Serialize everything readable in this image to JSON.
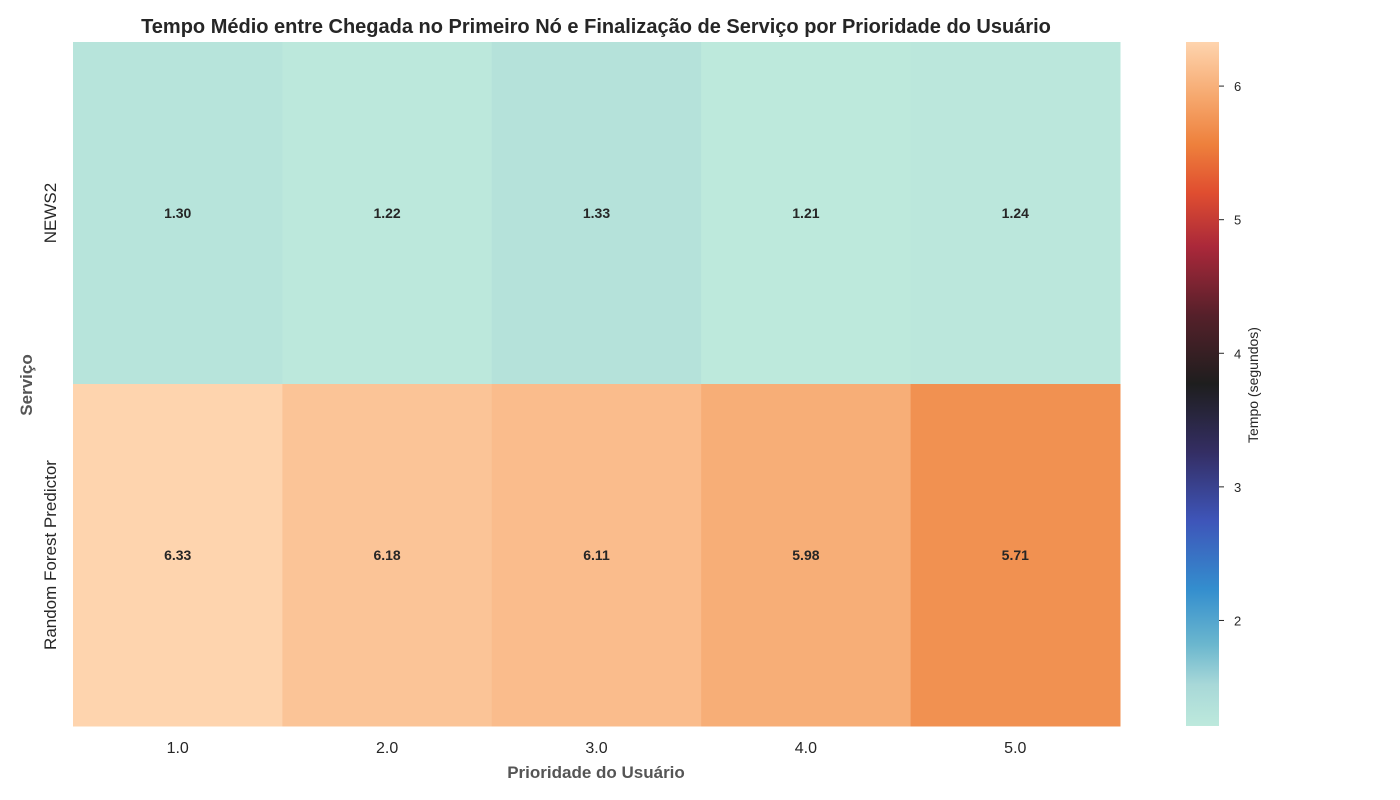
{
  "chart_data": {
    "type": "heatmap",
    "title": "Tempo Médio entre Chegada no Primeiro Nó e Finalização de Serviço por Prioridade do Usuário",
    "xlabel": "Prioridade do Usuário",
    "ylabel": "Serviço",
    "x_categories": [
      "1.0",
      "2.0",
      "3.0",
      "4.0",
      "5.0"
    ],
    "y_categories": [
      "NEWS2",
      "Random Forest Predictor"
    ],
    "values": [
      [
        1.3,
        1.22,
        1.33,
        1.21,
        1.24
      ],
      [
        6.33,
        6.18,
        6.11,
        5.98,
        5.71
      ]
    ],
    "value_format": "0.00",
    "colormap": "icefire",
    "colorbar": {
      "label": "Tempo (segundos)",
      "range": [
        1.21,
        6.33
      ],
      "ticks": [
        2,
        3,
        4,
        5,
        6
      ]
    }
  }
}
